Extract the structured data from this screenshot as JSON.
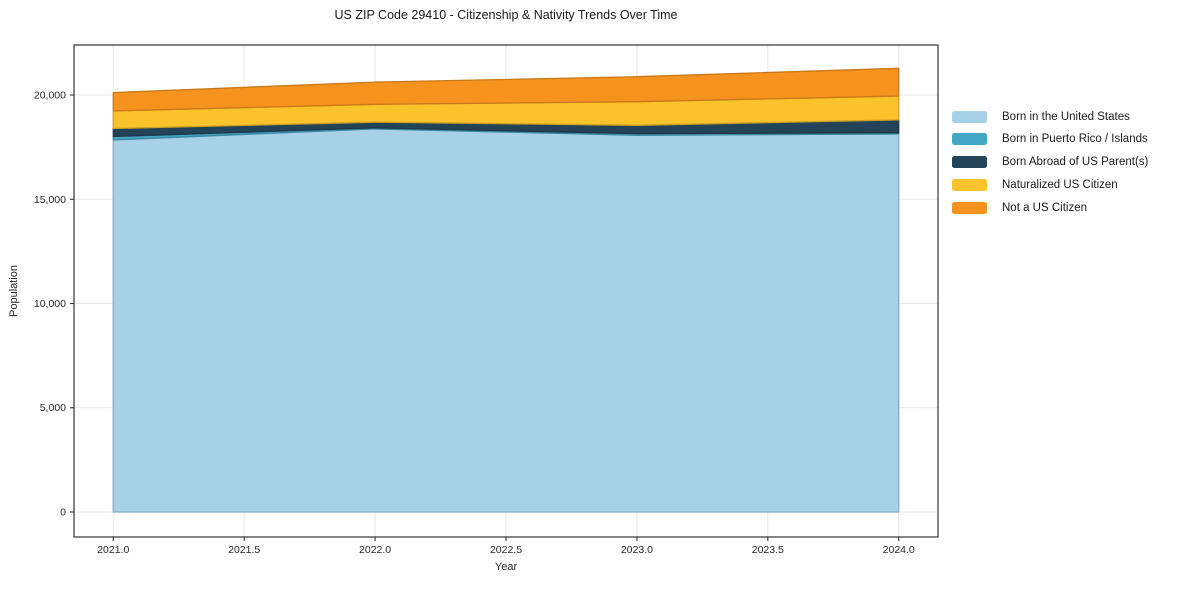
{
  "figure": {
    "title": "US ZIP Code 29410 - Citizenship & Nativity Trends Over Time",
    "xlabel": "Year",
    "ylabel": "Population"
  },
  "chart_data": {
    "type": "area",
    "stacked": true,
    "title": "US ZIP Code 29410 - Citizenship & Nativity Trends Over Time",
    "xlabel": "Year",
    "ylabel": "Population",
    "x": [
      2021,
      2022,
      2023,
      2024
    ],
    "series": [
      {
        "name": "Born in the United States",
        "color": "#A6D1E6",
        "values": [
          17850,
          18375,
          18075,
          18135
        ]
      },
      {
        "name": "Born in Puerto Rico / Islands",
        "color": "#45A7C6",
        "values": [
          160,
          50,
          75,
          60
        ]
      },
      {
        "name": "Born Abroad of US Parent(s)",
        "color": "#234458",
        "values": [
          385,
          270,
          400,
          610
        ]
      },
      {
        "name": "Naturalized US Citizen",
        "color": "#FAC22B",
        "values": [
          845,
          860,
          1130,
          1150
        ]
      },
      {
        "name": "Not a US Citizen",
        "color": "#F6921E",
        "values": [
          875,
          1065,
          1200,
          1325
        ]
      }
    ],
    "totals": [
      20115,
      20620,
      20880,
      21280
    ],
    "xticks": [
      2021.0,
      2021.5,
      2022.0,
      2022.5,
      2023.0,
      2023.5,
      2024.0
    ],
    "xtick_labels": [
      "2021.0",
      "2021.5",
      "2022.0",
      "2022.5",
      "2023.0",
      "2023.5",
      "2024.0"
    ],
    "yticks": [
      0,
      5000,
      10000,
      15000,
      20000
    ],
    "ytick_labels": [
      "0",
      "5,000",
      "10,000",
      "15,000",
      "20,000"
    ],
    "xlim": [
      2020.85,
      2024.15
    ],
    "ylim": [
      -1200,
      22400
    ],
    "grid": true,
    "legend_position": "right-outside"
  },
  "style": {
    "grid_color": "#e7e7e7",
    "spine_color": "#333333",
    "tick_label_color": "#262626",
    "background": "#ffffff"
  }
}
